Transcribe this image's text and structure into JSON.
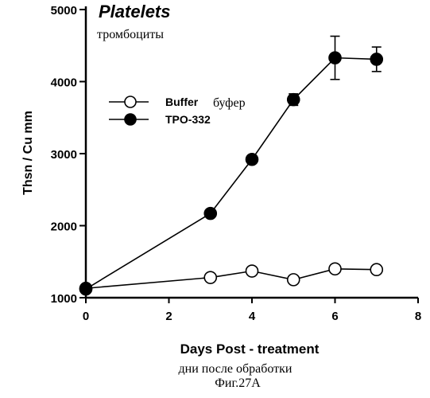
{
  "chart_data": {
    "type": "line",
    "title": "Platelets",
    "subtitle": "тромбоциты",
    "xlabel": "Days Post - treatment",
    "xlabel_alt": "дни после обработки",
    "ylabel": "Thsn / Cu mm",
    "xlim": [
      0,
      8
    ],
    "ylim": [
      1000,
      5000
    ],
    "xticks": [
      0,
      2,
      4,
      6,
      8
    ],
    "yticks": [
      1000,
      2000,
      3000,
      4000,
      5000
    ],
    "grid": false,
    "legend_position": "upper-left",
    "series": [
      {
        "name": "Buffer",
        "name_alt": "буфер",
        "marker": "open-circle",
        "x": [
          0,
          3,
          4,
          5,
          6,
          7
        ],
        "y": [
          1130,
          1280,
          1370,
          1250,
          1400,
          1390
        ],
        "error": [
          0,
          0,
          0,
          0,
          0,
          0
        ]
      },
      {
        "name": "TPO-332",
        "name_alt": "",
        "marker": "filled-circle",
        "x": [
          0,
          3,
          4,
          5,
          6,
          7
        ],
        "y": [
          1120,
          2170,
          2920,
          3750,
          4330,
          4310
        ],
        "error": [
          0,
          0,
          0,
          80,
          300,
          170
        ]
      }
    ],
    "caption": "Фиг.27А"
  }
}
